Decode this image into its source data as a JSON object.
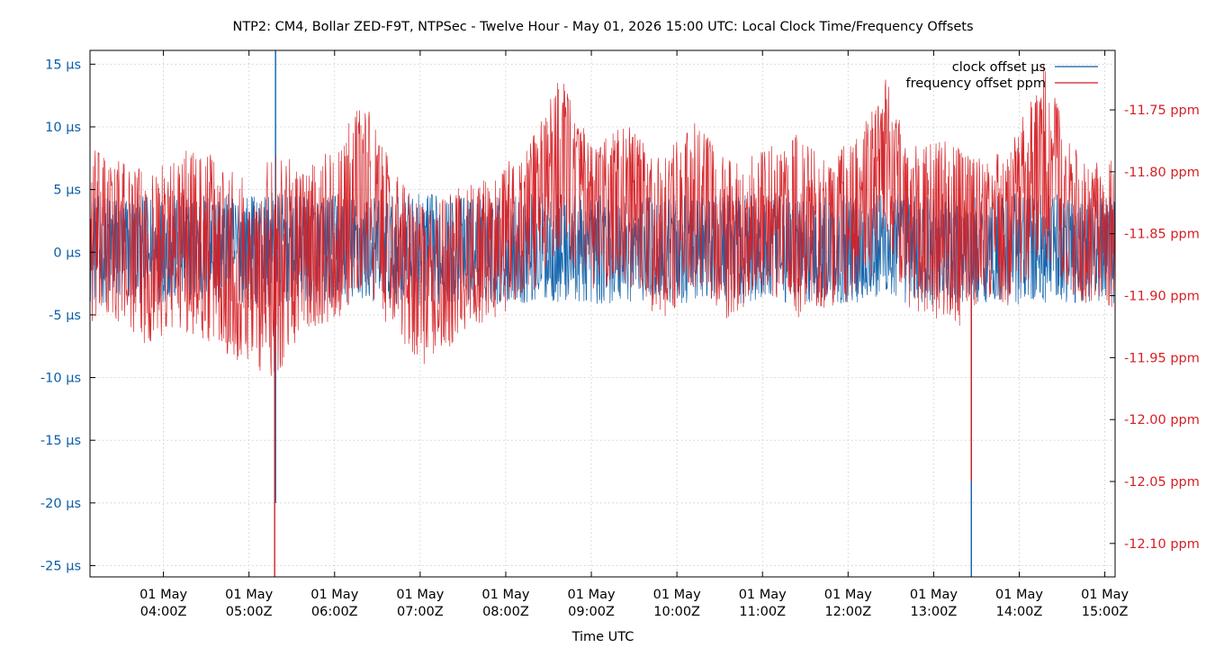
{
  "chart_data": {
    "type": "line",
    "title": "NTP2: CM4, Bollar ZED-F9T, NTPSec - Twelve Hour - May 01, 2026 15:00 UTC: Local Clock Time/Frequency Offsets",
    "xlabel": "Time UTC",
    "ylabel": "",
    "y2label": "",
    "grid": true,
    "legend_position": "top-right",
    "x_range_hours": [
      3.142,
      15.12
    ],
    "y_range": [
      -25.9,
      16.1
    ],
    "y2_range": [
      -12.127,
      -11.702
    ],
    "x_ticks": [
      {
        "hour": 4,
        "line1": "01 May",
        "line2": "04:00Z"
      },
      {
        "hour": 5,
        "line1": "01 May",
        "line2": "05:00Z"
      },
      {
        "hour": 6,
        "line1": "01 May",
        "line2": "06:00Z"
      },
      {
        "hour": 7,
        "line1": "01 May",
        "line2": "07:00Z"
      },
      {
        "hour": 8,
        "line1": "01 May",
        "line2": "08:00Z"
      },
      {
        "hour": 9,
        "line1": "01 May",
        "line2": "09:00Z"
      },
      {
        "hour": 10,
        "line1": "01 May",
        "line2": "10:00Z"
      },
      {
        "hour": 11,
        "line1": "01 May",
        "line2": "11:00Z"
      },
      {
        "hour": 12,
        "line1": "01 May",
        "line2": "12:00Z"
      },
      {
        "hour": 13,
        "line1": "01 May",
        "line2": "13:00Z"
      },
      {
        "hour": 14,
        "line1": "01 May",
        "line2": "14:00Z"
      },
      {
        "hour": 15,
        "line1": "01 May",
        "line2": "15:00Z"
      }
    ],
    "y_ticks": [
      {
        "value": 15,
        "label": "15 µs"
      },
      {
        "value": 10,
        "label": "10 µs"
      },
      {
        "value": 5,
        "label": "5 µs"
      },
      {
        "value": 0,
        "label": "0 µs"
      },
      {
        "value": -5,
        "label": "-5 µs"
      },
      {
        "value": -10,
        "label": "-10 µs"
      },
      {
        "value": -15,
        "label": "-15 µs"
      },
      {
        "value": -20,
        "label": "-20 µs"
      },
      {
        "value": -25,
        "label": "-25 µs"
      }
    ],
    "y2_ticks": [
      {
        "value": -11.75,
        "label": "-11.75 ppm"
      },
      {
        "value": -11.8,
        "label": "-11.80 ppm"
      },
      {
        "value": -11.85,
        "label": "-11.85 ppm"
      },
      {
        "value": -11.9,
        "label": "-11.90 ppm"
      },
      {
        "value": -11.95,
        "label": "-11.95 ppm"
      },
      {
        "value": -12.0,
        "label": "-12.00 ppm"
      },
      {
        "value": -12.05,
        "label": "-12.05 ppm"
      },
      {
        "value": -12.1,
        "label": "-12.10 ppm"
      }
    ],
    "series": [
      {
        "name": "clock offset µs",
        "axis": "left",
        "color": "#0a5ea8",
        "envelope_points": [
          {
            "hour": 3.15,
            "min": -4.0,
            "max": 4.5
          },
          {
            "hour": 3.5,
            "min": -4.2,
            "max": 4.6
          },
          {
            "hour": 4.0,
            "min": -4.0,
            "max": 4.5
          },
          {
            "hour": 4.5,
            "min": -4.2,
            "max": 4.8
          },
          {
            "hour": 5.0,
            "min": -4.0,
            "max": 4.6
          },
          {
            "hour": 5.3,
            "min": -4.5,
            "max": 4.8
          },
          {
            "hour": 5.5,
            "min": -4.0,
            "max": 4.5
          },
          {
            "hour": 6.0,
            "min": -4.2,
            "max": 4.6
          },
          {
            "hour": 6.5,
            "min": -4.0,
            "max": 4.4
          },
          {
            "hour": 7.0,
            "min": -4.3,
            "max": 4.7
          },
          {
            "hour": 7.5,
            "min": -4.0,
            "max": 4.5
          },
          {
            "hour": 8.0,
            "min": -4.2,
            "max": 4.6
          },
          {
            "hour": 8.5,
            "min": -4.0,
            "max": 4.8
          },
          {
            "hour": 9.0,
            "min": -4.2,
            "max": 4.6
          },
          {
            "hour": 9.5,
            "min": -4.0,
            "max": 4.5
          },
          {
            "hour": 10.0,
            "min": -4.1,
            "max": 4.6
          },
          {
            "hour": 10.5,
            "min": -4.0,
            "max": 4.5
          },
          {
            "hour": 11.0,
            "min": -4.2,
            "max": 4.6
          },
          {
            "hour": 11.5,
            "min": -4.0,
            "max": 4.4
          },
          {
            "hour": 12.0,
            "min": -4.1,
            "max": 4.6
          },
          {
            "hour": 12.5,
            "min": -4.0,
            "max": 4.8
          },
          {
            "hour": 13.0,
            "min": -4.3,
            "max": 4.6
          },
          {
            "hour": 13.5,
            "min": -4.0,
            "max": 4.5
          },
          {
            "hour": 14.0,
            "min": -4.2,
            "max": 4.8
          },
          {
            "hour": 14.5,
            "min": -4.0,
            "max": 4.6
          },
          {
            "hour": 15.1,
            "min": -4.1,
            "max": 4.5
          }
        ],
        "spikes": [
          {
            "hour": 5.31,
            "min": -20,
            "max": 16.1
          },
          {
            "hour": 13.44,
            "min": -25.9,
            "max": 1.0
          }
        ]
      },
      {
        "name": "frequency offset ppm",
        "axis": "right",
        "color": "#d51f24",
        "envelope_points": [
          {
            "hour": 3.15,
            "min": -11.93,
            "max": -11.78
          },
          {
            "hour": 3.5,
            "min": -11.92,
            "max": -11.79
          },
          {
            "hour": 3.8,
            "min": -11.94,
            "max": -11.8
          },
          {
            "hour": 4.3,
            "min": -11.93,
            "max": -11.78
          },
          {
            "hour": 4.8,
            "min": -11.95,
            "max": -11.79
          },
          {
            "hour": 5.1,
            "min": -11.96,
            "max": -11.82
          },
          {
            "hour": 5.3,
            "min": -11.97,
            "max": -11.77
          },
          {
            "hour": 5.6,
            "min": -11.93,
            "max": -11.8
          },
          {
            "hour": 6.0,
            "min": -11.92,
            "max": -11.78
          },
          {
            "hour": 6.35,
            "min": -11.9,
            "max": -11.74
          },
          {
            "hour": 6.7,
            "min": -11.93,
            "max": -11.8
          },
          {
            "hour": 7.1,
            "min": -11.96,
            "max": -11.83
          },
          {
            "hour": 7.5,
            "min": -11.93,
            "max": -11.81
          },
          {
            "hour": 7.9,
            "min": -11.92,
            "max": -11.8
          },
          {
            "hour": 8.3,
            "min": -11.9,
            "max": -11.77
          },
          {
            "hour": 8.65,
            "min": -11.86,
            "max": -11.72
          },
          {
            "hour": 9.0,
            "min": -11.9,
            "max": -11.78
          },
          {
            "hour": 9.4,
            "min": -11.89,
            "max": -11.76
          },
          {
            "hour": 9.8,
            "min": -11.92,
            "max": -11.79
          },
          {
            "hour": 10.2,
            "min": -11.9,
            "max": -11.76
          },
          {
            "hour": 10.6,
            "min": -11.92,
            "max": -11.79
          },
          {
            "hour": 11.0,
            "min": -11.9,
            "max": -11.78
          },
          {
            "hour": 11.4,
            "min": -11.92,
            "max": -11.77
          },
          {
            "hour": 11.8,
            "min": -11.91,
            "max": -11.79
          },
          {
            "hour": 12.2,
            "min": -11.9,
            "max": -11.76
          },
          {
            "hour": 12.45,
            "min": -11.86,
            "max": -11.72
          },
          {
            "hour": 12.7,
            "min": -11.91,
            "max": -11.78
          },
          {
            "hour": 13.0,
            "min": -11.92,
            "max": -11.77
          },
          {
            "hour": 13.3,
            "min": -11.93,
            "max": -11.78
          },
          {
            "hour": 13.6,
            "min": -11.9,
            "max": -11.79
          },
          {
            "hour": 13.9,
            "min": -11.91,
            "max": -11.78
          },
          {
            "hour": 14.3,
            "min": -11.87,
            "max": -11.71
          },
          {
            "hour": 14.6,
            "min": -11.9,
            "max": -11.78
          },
          {
            "hour": 15.1,
            "min": -11.92,
            "max": -11.79
          }
        ],
        "spikes": [
          {
            "hour": 5.3,
            "min": -12.127,
            "max": -11.83
          },
          {
            "hour": 13.44,
            "min": -12.05,
            "max": -11.87
          }
        ]
      }
    ]
  }
}
